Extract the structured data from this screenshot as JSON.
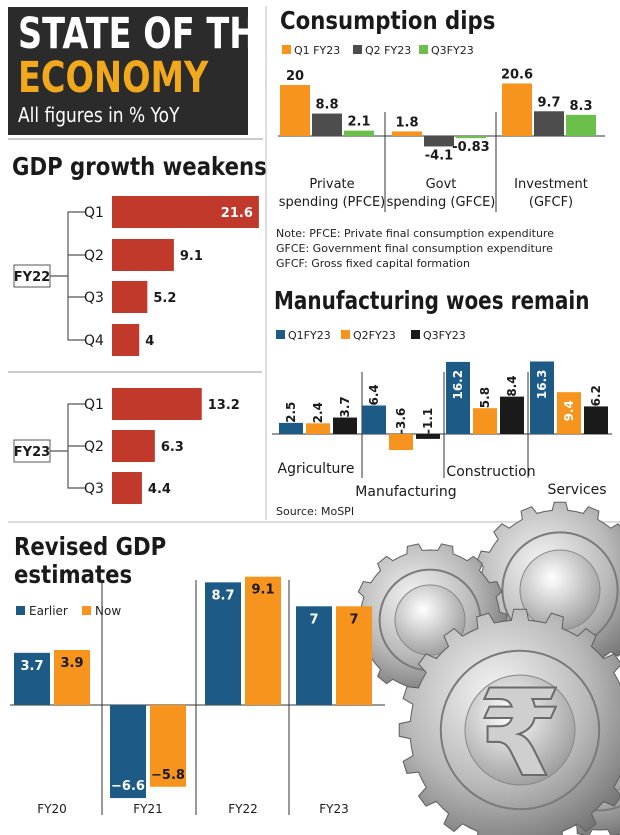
{
  "header": {
    "line1": "STATE OF THE",
    "line2": "ECONOMY",
    "subtitle": "All figures in % YoY"
  },
  "colors": {
    "orange": "#f7941d",
    "dark_gray": "#4d4d4d",
    "green": "#6cbf4a",
    "red": "#c0392b",
    "blue": "#1d5b86",
    "black": "#1a1a1a"
  },
  "consumption": {
    "title": "Consumption dips",
    "notes": [
      "Note: PFCE: Private final consumption expenditure",
      "GFCE: Government final consumption expenditure",
      "GFCF: Gross fixed capital formation"
    ]
  },
  "gdp_growth": {
    "title": "GDP growth weakens"
  },
  "manufacturing": {
    "title": "Manufacturing woes remain",
    "source": "Source: MoSPI"
  },
  "revised": {
    "title_line1": "Revised GDP",
    "title_line2": "estimates"
  },
  "decor": {
    "rupee_symbol": "₹",
    "gear_icon": "gear-icon"
  },
  "chart_data": [
    {
      "id": "consumption",
      "type": "bar",
      "title": "Consumption dips",
      "categories": [
        "Private spending (PFCE)",
        "Govt spending (GFCE)",
        "Investment (GFCF)"
      ],
      "category_lines": [
        [
          "Private",
          "spending (PFCE)"
        ],
        [
          "Govt",
          "spending (GFCE)"
        ],
        [
          "Investment",
          "(GFCF)"
        ]
      ],
      "series": [
        {
          "name": "Q1 FY23",
          "color": "#f7941d",
          "values": [
            20,
            1.8,
            20.6
          ],
          "labels": [
            "20",
            "1.8",
            "20.6"
          ]
        },
        {
          "name": "Q2 FY23",
          "color": "#4d4d4d",
          "values": [
            8.8,
            -4.1,
            9.7
          ],
          "labels": [
            "8.8",
            "-4.1",
            "9.7"
          ]
        },
        {
          "name": "Q3FY23",
          "color": "#6cbf4a",
          "values": [
            2.1,
            -0.83,
            8.3
          ],
          "labels": [
            "2.1",
            "-0.83",
            "8.3"
          ]
        }
      ],
      "legend": "top-left"
    },
    {
      "id": "gdp_growth",
      "type": "bar",
      "orientation": "horizontal",
      "title": "GDP growth weakens",
      "groups": [
        {
          "name": "FY22",
          "quarters": [
            "Q1",
            "Q2",
            "Q3",
            "Q4"
          ],
          "values": [
            21.6,
            9.1,
            5.2,
            4
          ],
          "labels": [
            "21.6",
            "9.1",
            "5.2",
            "4"
          ]
        },
        {
          "name": "FY23",
          "quarters": [
            "Q1",
            "Q2",
            "Q3"
          ],
          "values": [
            13.2,
            6.3,
            4.4
          ],
          "labels": [
            "13.2",
            "6.3",
            "4.4"
          ]
        }
      ],
      "color": "#c0392b"
    },
    {
      "id": "manufacturing",
      "type": "bar",
      "title": "Manufacturing woes remain",
      "categories": [
        "Agriculture",
        "Manufacturing",
        "Construction",
        "Services"
      ],
      "series": [
        {
          "name": "Q1FY23",
          "color": "#1d5b86",
          "values": [
            2.5,
            6.4,
            16.2,
            16.3
          ],
          "labels": [
            "2.5",
            "6.4",
            "16.2",
            "16.3"
          ]
        },
        {
          "name": "Q2FY23",
          "color": "#f7941d",
          "values": [
            2.4,
            -3.6,
            5.8,
            9.4
          ],
          "labels": [
            "2.4",
            "-3.6",
            "5.8",
            "9.4"
          ]
        },
        {
          "name": "Q3FY23",
          "color": "#1a1a1a",
          "values": [
            3.7,
            -1.1,
            8.4,
            6.2
          ],
          "labels": [
            "3.7",
            "-1.1",
            "8.4",
            "6.2"
          ]
        }
      ],
      "legend": "top-left"
    },
    {
      "id": "revised",
      "type": "bar",
      "title": "Revised GDP estimates",
      "categories": [
        "FY20",
        "FY21",
        "FY22",
        "FY23"
      ],
      "series": [
        {
          "name": "Earlier",
          "color": "#1d5b86",
          "values": [
            3.7,
            -6.6,
            8.7,
            7
          ],
          "labels": [
            "3.7",
            "−6.6",
            "8.7",
            "7"
          ]
        },
        {
          "name": "Now",
          "color": "#f7941d",
          "values": [
            3.9,
            -5.8,
            9.1,
            7
          ],
          "labels": [
            "3.9",
            "−5.8",
            "9.1",
            "7"
          ]
        }
      ],
      "legend": "top-left"
    }
  ]
}
